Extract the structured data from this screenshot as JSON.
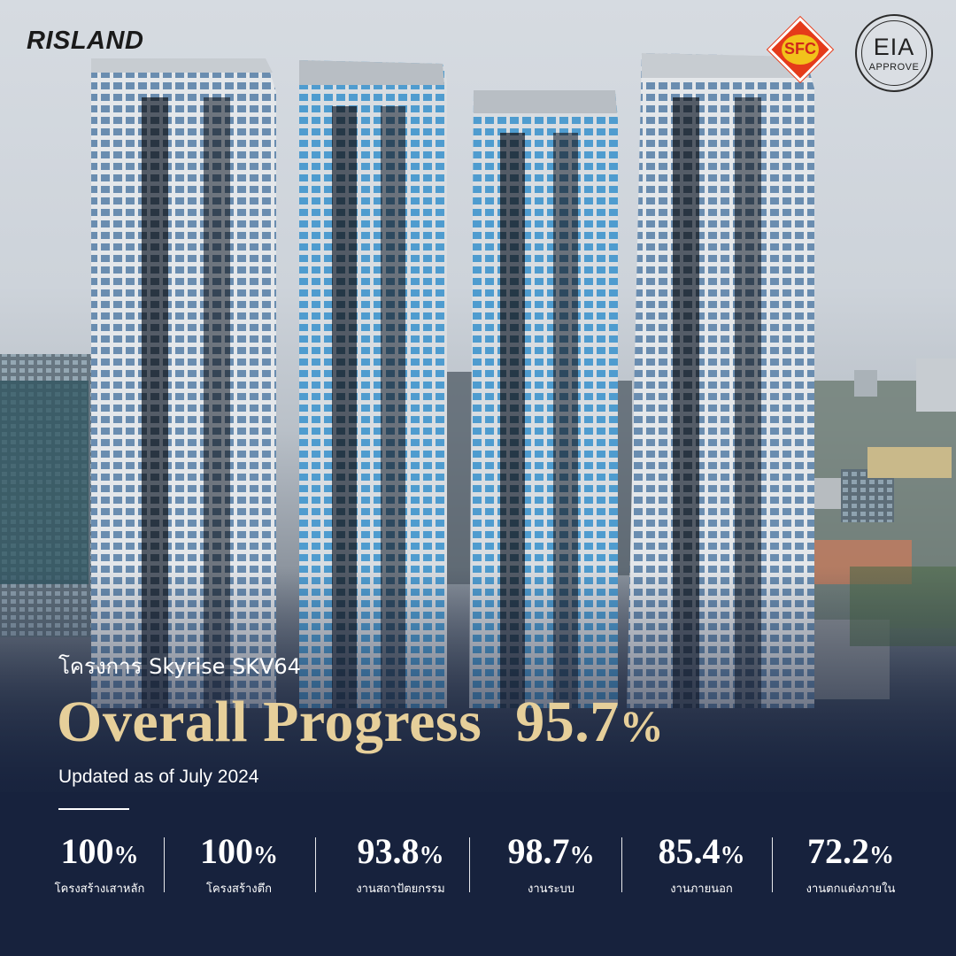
{
  "brand": {
    "logo_text": "RISLAND"
  },
  "badges": {
    "sfc": {
      "text": "SFC",
      "color": "#e53b1a",
      "accent": "#f2c21b"
    },
    "eia": {
      "main": "EIA",
      "sub": "APPROVE"
    }
  },
  "project": {
    "name": "โครงการ Skyrise SKV64",
    "headline": "Overall Progress",
    "overall_value": "95.7",
    "overall_unit": "%",
    "updated": "Updated as of July 2024"
  },
  "progress_items": [
    {
      "value": "100",
      "unit": "%",
      "label": "โครงสร้างเสาหลัก",
      "fraction": 1.0
    },
    {
      "value": "100",
      "unit": "%",
      "label": "โครงสร้างตึก",
      "fraction": 1.0
    },
    {
      "value": "93.8",
      "unit": "%",
      "label": "งานสถาปัตยกรรม",
      "fraction": 0.938
    },
    {
      "value": "98.7",
      "unit": "%",
      "label": "งานระบบ",
      "fraction": 0.987
    },
    {
      "value": "85.4",
      "unit": "%",
      "label": "งานภายนอก",
      "fraction": 0.854
    },
    {
      "value": "72.2",
      "unit": "%",
      "label": "งานตกแต่งภายใน",
      "fraction": 0.722
    }
  ],
  "colors": {
    "gold": "#e6cf9a",
    "navy": "#17223d",
    "white": "#ffffff"
  },
  "scene": {
    "subject": "four-residential-towers-photo"
  }
}
